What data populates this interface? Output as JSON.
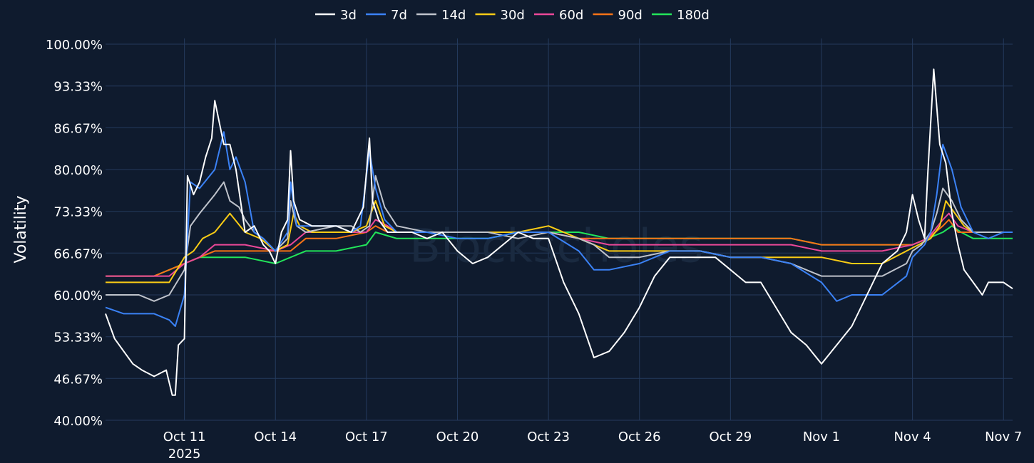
{
  "chart_data": {
    "type": "line",
    "watermark": "Blockscholes",
    "ylabel": "Volatility",
    "ylim": [
      40,
      100
    ],
    "y_ticks": [
      40,
      46.67,
      53.33,
      60,
      66.67,
      73.33,
      80,
      86.67,
      93.33,
      100
    ],
    "y_tick_labels": [
      "40.00%",
      "46.67%",
      "53.33%",
      "60.00%",
      "66.67%",
      "73.33%",
      "80.00%",
      "86.67%",
      "93.33%",
      "100.00%"
    ],
    "xlim": [
      -2.6,
      27.3
    ],
    "x_ticks": [
      0,
      3,
      6,
      9,
      12,
      15,
      18,
      21,
      24,
      27
    ],
    "x_tick_labels": [
      "Oct 11",
      "Oct 14",
      "Oct 17",
      "Oct 20",
      "Oct 23",
      "Oct 26",
      "Oct 29",
      "Nov 1",
      "Nov 4",
      "Nov 7"
    ],
    "x_sub_label": "2025",
    "x_unit": "days since Oct 11 2025",
    "legend_position": "top-center",
    "grid": true,
    "series": [
      {
        "name": "3d",
        "color": "#ffffff",
        "x": [
          -2.6,
          -2.3,
          -2.0,
          -1.7,
          -1.4,
          -1.0,
          -0.6,
          -0.4,
          -0.3,
          -0.2,
          0.0,
          0.1,
          0.3,
          0.5,
          0.7,
          0.9,
          1.0,
          1.3,
          1.5,
          1.7,
          2.0,
          2.3,
          2.6,
          2.8,
          3.0,
          3.2,
          3.4,
          3.5,
          3.6,
          3.8,
          4.2,
          4.6,
          5.0,
          5.5,
          5.7,
          5.9,
          6.1,
          6.2,
          6.4,
          6.7,
          7.0,
          7.5,
          8.0,
          8.5,
          9.0,
          9.5,
          10.0,
          10.5,
          11.0,
          11.5,
          12.0,
          12.5,
          13.0,
          13.5,
          14.0,
          14.5,
          15.0,
          15.5,
          16.0,
          16.5,
          17.0,
          17.5,
          18.0,
          18.5,
          19.0,
          19.5,
          20.0,
          20.5,
          21.0,
          21.5,
          22.0,
          22.5,
          23.0,
          23.5,
          23.8,
          24.0,
          24.2,
          24.4,
          24.5,
          24.7,
          24.9,
          25.1,
          25.3,
          25.5,
          25.7,
          26.0,
          26.3,
          26.5,
          26.8,
          27.0,
          27.3
        ],
        "y": [
          57,
          53,
          51,
          49,
          48,
          47,
          48,
          44,
          44,
          52,
          53,
          79,
          76,
          78,
          82,
          85,
          91,
          84,
          84,
          80,
          70,
          71,
          68,
          67,
          65,
          70,
          72,
          83,
          75,
          72,
          71,
          71,
          71,
          70,
          72,
          74,
          85,
          75,
          72,
          70,
          70,
          70,
          69,
          70,
          67,
          65,
          66,
          68,
          70,
          69,
          69,
          62,
          57,
          50,
          51,
          54,
          58,
          63,
          66,
          66,
          66,
          66,
          64,
          62,
          62,
          58,
          54,
          52,
          49,
          52,
          55,
          60,
          65,
          67,
          70,
          76,
          72,
          69,
          79,
          96,
          84,
          81,
          73,
          68,
          64,
          62,
          60,
          62,
          62,
          62,
          61
        ]
      },
      {
        "name": "7d",
        "color": "#3b82f6",
        "x": [
          -2.6,
          -2.0,
          -1.5,
          -1.0,
          -0.5,
          -0.3,
          0.0,
          0.2,
          0.5,
          1.0,
          1.3,
          1.5,
          1.7,
          2.0,
          2.3,
          2.6,
          3.0,
          3.4,
          3.5,
          3.7,
          4.0,
          5.0,
          5.5,
          5.8,
          6.1,
          6.3,
          6.6,
          7.0,
          8.0,
          9.0,
          10.0,
          11.0,
          12.0,
          13.0,
          13.5,
          14.0,
          15.0,
          16.0,
          17.0,
          18.0,
          19.0,
          20.0,
          21.0,
          21.5,
          22.0,
          23.0,
          23.8,
          24.0,
          24.2,
          24.4,
          24.6,
          24.8,
          25.0,
          25.3,
          25.6,
          26.0,
          26.5,
          27.0,
          27.3
        ],
        "y": [
          58,
          57,
          57,
          57,
          56,
          55,
          60,
          78,
          77,
          80,
          86,
          80,
          82,
          78,
          70,
          69,
          67,
          70,
          78,
          71,
          71,
          71,
          70,
          71,
          83,
          77,
          72,
          70,
          70,
          69,
          69,
          70,
          70,
          67,
          64,
          64,
          65,
          67,
          67,
          66,
          66,
          65,
          62,
          59,
          60,
          60,
          63,
          66,
          67,
          68,
          70,
          76,
          84,
          80,
          74,
          70,
          69,
          70,
          70
        ]
      },
      {
        "name": "14d",
        "color": "#c0c4cc",
        "x": [
          -2.6,
          -2.0,
          -1.5,
          -1.0,
          -0.5,
          0.0,
          0.2,
          0.5,
          1.0,
          1.3,
          1.5,
          1.8,
          2.0,
          2.3,
          2.6,
          3.0,
          3.4,
          3.5,
          3.7,
          4.0,
          5.0,
          5.5,
          5.8,
          6.1,
          6.3,
          6.6,
          7.0,
          8.0,
          9.0,
          10.0,
          11.0,
          12.0,
          13.0,
          13.5,
          14.0,
          15.0,
          16.0,
          17.0,
          18.0,
          19.0,
          20.0,
          21.0,
          21.5,
          22.0,
          23.0,
          23.8,
          24.0,
          24.3,
          24.6,
          24.8,
          25.0,
          25.3,
          25.6,
          26.0,
          26.5,
          27.0,
          27.3
        ],
        "y": [
          60,
          60,
          60,
          59,
          60,
          64,
          71,
          73,
          76,
          78,
          75,
          74,
          72,
          70,
          69,
          67,
          69,
          75,
          71,
          70,
          71,
          71,
          70,
          71,
          79,
          74,
          71,
          70,
          70,
          70,
          69,
          70,
          69,
          68,
          66,
          66,
          67,
          67,
          66,
          66,
          65,
          63,
          63,
          63,
          63,
          65,
          67,
          68,
          70,
          73,
          77,
          75,
          72,
          70,
          70,
          70,
          70
        ]
      },
      {
        "name": "30d",
        "color": "#facc15",
        "x": [
          -2.6,
          -2.0,
          -1.5,
          -1.0,
          -0.5,
          0.0,
          0.3,
          0.6,
          1.0,
          1.5,
          2.0,
          2.5,
          3.0,
          3.4,
          3.6,
          3.8,
          4.2,
          5.0,
          5.5,
          6.0,
          6.3,
          6.6,
          7.0,
          8.0,
          9.0,
          10.0,
          11.0,
          12.0,
          13.0,
          14.0,
          15.0,
          16.0,
          17.0,
          18.0,
          19.0,
          20.0,
          21.0,
          22.0,
          23.0,
          23.8,
          24.2,
          24.6,
          24.9,
          25.1,
          25.4,
          25.7,
          26.0,
          26.5,
          27.0,
          27.3
        ],
        "y": [
          62,
          62,
          62,
          62,
          62,
          66,
          67,
          69,
          70,
          73,
          70,
          69,
          67,
          68,
          73,
          71,
          70,
          70,
          70,
          71,
          75,
          71,
          70,
          70,
          70,
          70,
          70,
          71,
          69,
          67,
          67,
          67,
          67,
          66,
          66,
          66,
          66,
          65,
          65,
          67,
          68,
          69,
          71,
          75,
          73,
          71,
          70,
          70,
          70,
          70
        ]
      },
      {
        "name": "60d",
        "color": "#ec4899",
        "x": [
          -2.6,
          -2.0,
          -1.5,
          -1.0,
          -0.5,
          0.0,
          0.5,
          1.0,
          2.0,
          3.0,
          3.5,
          4.0,
          5.0,
          6.0,
          6.3,
          6.7,
          7.0,
          8.0,
          9.0,
          10.0,
          11.0,
          12.0,
          13.0,
          14.0,
          15.0,
          16.0,
          17.0,
          18.0,
          19.0,
          20.0,
          21.0,
          22.0,
          23.0,
          24.0,
          24.5,
          25.0,
          25.2,
          25.5,
          26.0,
          27.0,
          27.3
        ],
        "y": [
          63,
          63,
          63,
          63,
          63,
          65,
          66,
          68,
          68,
          67,
          68,
          70,
          70,
          70,
          72,
          71,
          70,
          70,
          70,
          70,
          70,
          70,
          69,
          68,
          68,
          68,
          68,
          68,
          68,
          68,
          67,
          67,
          67,
          68,
          69,
          72,
          73,
          71,
          70,
          70,
          70
        ]
      },
      {
        "name": "90d",
        "color": "#f97316",
        "x": [
          -2.6,
          -2.0,
          -1.0,
          0.0,
          0.5,
          1.0,
          2.0,
          3.0,
          3.5,
          4.0,
          5.0,
          6.0,
          6.3,
          6.7,
          7.0,
          8.0,
          9.0,
          10.0,
          11.0,
          12.0,
          13.0,
          14.0,
          15.0,
          16.0,
          17.0,
          18.0,
          19.0,
          20.0,
          21.0,
          22.0,
          23.0,
          24.0,
          24.5,
          25.0,
          25.2,
          25.5,
          26.0,
          27.0,
          27.3
        ],
        "y": [
          63,
          63,
          63,
          65,
          66,
          67,
          67,
          67,
          67,
          69,
          69,
          70,
          71,
          70,
          70,
          70,
          70,
          70,
          70,
          70,
          69,
          69,
          69,
          69,
          69,
          69,
          69,
          69,
          68,
          68,
          68,
          68,
          69,
          71,
          72,
          70,
          70,
          70,
          70
        ]
      },
      {
        "name": "180d",
        "color": "#22e65a",
        "x": [
          -2.6,
          -2.0,
          -1.0,
          0.0,
          0.5,
          1.0,
          2.0,
          3.0,
          4.0,
          5.0,
          6.0,
          6.3,
          7.0,
          8.0,
          9.0,
          10.0,
          11.0,
          12.0,
          13.0,
          14.0,
          15.0,
          16.0,
          17.0,
          18.0,
          19.0,
          20.0,
          21.0,
          22.0,
          23.0,
          24.0,
          24.5,
          25.0,
          25.3,
          25.6,
          26.0,
          27.0,
          27.3
        ],
        "y": [
          63,
          63,
          63,
          65,
          66,
          66,
          66,
          65,
          67,
          67,
          68,
          70,
          69,
          69,
          69,
          69,
          70,
          70,
          70,
          69,
          69,
          69,
          69,
          69,
          69,
          69,
          68,
          68,
          68,
          68,
          69,
          70,
          71,
          70,
          69,
          69,
          69
        ]
      }
    ]
  }
}
